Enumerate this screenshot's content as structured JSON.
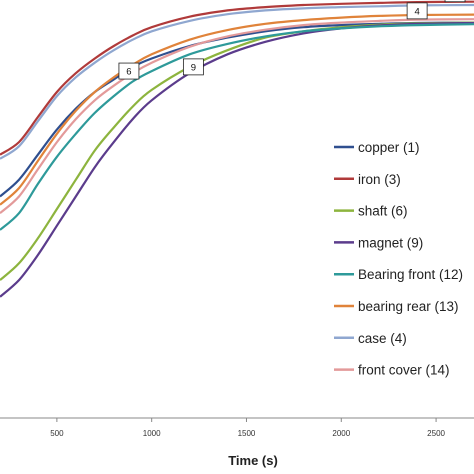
{
  "chart_data": {
    "type": "line",
    "xlabel": "Time (s)",
    "ylabel": "",
    "xlim": [
      200,
      2700
    ],
    "ylim": [
      0,
      100
    ],
    "x_ticks": [
      500,
      1000,
      1500,
      2000,
      2500
    ],
    "grid": false,
    "legend_position": "right",
    "series": [
      {
        "name": "copper (1)",
        "color": "#2f4f8f",
        "x": [
          200,
          300,
          400,
          500,
          600,
          700,
          800,
          900,
          1000,
          1200,
          1400,
          1600,
          1800,
          2000,
          2200,
          2400,
          2700
        ],
        "y": [
          53,
          57,
          63,
          69,
          74,
          78,
          81,
          84,
          86,
          89,
          91,
          92.5,
          93.5,
          94,
          94.3,
          94.5,
          94.6
        ]
      },
      {
        "name": "iron (3)",
        "color": "#b03a3a",
        "x": [
          200,
          300,
          400,
          500,
          600,
          700,
          800,
          900,
          1000,
          1200,
          1400,
          1600,
          1800,
          2000,
          2200,
          2400,
          2700
        ],
        "y": [
          63,
          66,
          72,
          78,
          82.5,
          86,
          89,
          91.5,
          93.5,
          96,
          97.5,
          98.3,
          98.8,
          99.1,
          99.3,
          99.5,
          99.6
        ]
      },
      {
        "name": "shaft  (6)",
        "color": "#8db43e",
        "x": [
          200,
          300,
          400,
          500,
          600,
          700,
          800,
          900,
          1000,
          1200,
          1400,
          1600,
          1800,
          2000,
          2200,
          2400,
          2700
        ],
        "y": [
          33,
          37,
          43,
          50,
          57,
          64,
          69.5,
          74.5,
          78.5,
          84,
          88,
          91,
          92.5,
          93.5,
          94.1,
          94.4,
          94.6
        ]
      },
      {
        "name": "magnet (9)",
        "color": "#5b3c8c",
        "x": [
          200,
          300,
          400,
          500,
          600,
          700,
          800,
          900,
          1000,
          1200,
          1400,
          1600,
          1800,
          2000,
          2200,
          2400,
          2700
        ],
        "y": [
          29,
          33,
          39,
          46,
          53,
          60,
          66,
          71.5,
          76,
          82.5,
          87,
          90,
          92,
          93.2,
          93.9,
          94.3,
          94.5
        ]
      },
      {
        "name": "Bearing front (12)",
        "color": "#2e9a9a",
        "x": [
          200,
          300,
          400,
          500,
          600,
          700,
          800,
          900,
          1000,
          1200,
          1400,
          1600,
          1800,
          2000,
          2200,
          2400,
          2700
        ],
        "y": [
          45,
          49,
          56,
          62.5,
          68,
          73,
          77,
          80.5,
          83,
          87,
          89.5,
          91.3,
          92.5,
          93.2,
          93.7,
          94,
          94.2
        ]
      },
      {
        "name": "bearing rear (13)",
        "color": "#e0833a",
        "x": [
          200,
          300,
          400,
          500,
          600,
          700,
          800,
          900,
          1000,
          1200,
          1400,
          1600,
          1800,
          2000,
          2200,
          2400,
          2700
        ],
        "y": [
          51,
          55,
          61.5,
          68,
          73.5,
          78,
          81.5,
          84.5,
          87,
          90.5,
          92.8,
          94.3,
          95.2,
          95.8,
          96.2,
          96.4,
          96.5
        ]
      },
      {
        "name": "case (4)",
        "color": "#8fa7d0",
        "x": [
          200,
          300,
          400,
          500,
          600,
          700,
          800,
          900,
          1000,
          1200,
          1400,
          1600,
          1800,
          2000,
          2200,
          2400,
          2700
        ],
        "y": [
          62,
          65,
          71,
          77,
          81.5,
          85,
          88,
          90.5,
          92.5,
          95,
          96.6,
          97.5,
          98,
          98.3,
          98.5,
          98.7,
          98.8
        ]
      },
      {
        "name": "front cover (14)",
        "color": "#e39a9a",
        "x": [
          200,
          300,
          400,
          500,
          600,
          700,
          800,
          900,
          1000,
          1200,
          1400,
          1600,
          1800,
          2000,
          2200,
          2400,
          2700
        ],
        "y": [
          49,
          53,
          59.5,
          66,
          71.5,
          76,
          79.5,
          82.5,
          85,
          88.8,
          91.3,
          92.9,
          94,
          94.6,
          95,
          95.3,
          95.4
        ]
      }
    ],
    "annotations": [
      {
        "text": "6",
        "x": 880,
        "y": 83
      },
      {
        "text": "9",
        "x": 1220,
        "y": 84
      },
      {
        "text": "4",
        "x": 2400,
        "y": 97.4
      },
      {
        "text": "",
        "x": 2600,
        "y": 101.5
      }
    ]
  }
}
